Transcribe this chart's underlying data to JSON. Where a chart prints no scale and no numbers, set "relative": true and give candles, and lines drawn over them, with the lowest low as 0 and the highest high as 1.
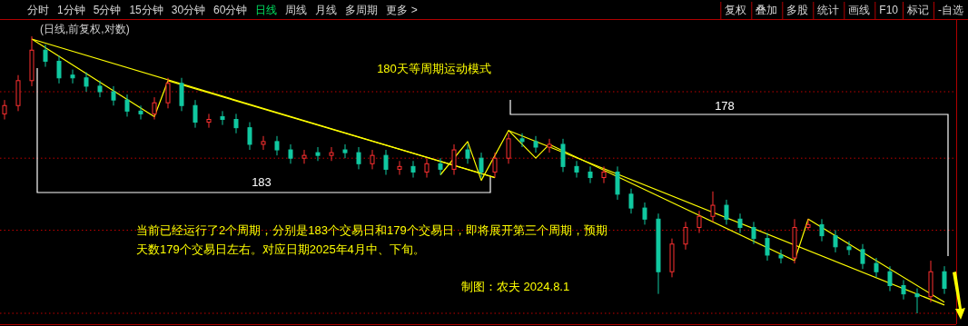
{
  "chart_data": {
    "type": "candlestick",
    "relative": true,
    "categories": [
      null,
      null,
      null,
      null,
      null,
      null,
      null,
      null,
      null,
      null,
      null,
      null,
      null,
      null,
      null,
      null,
      null,
      null,
      null,
      null,
      null,
      null,
      null,
      null,
      null,
      null,
      null,
      null,
      null,
      null,
      null,
      null,
      null,
      null,
      null,
      null,
      null,
      null,
      null,
      null,
      null,
      null,
      null,
      null,
      null,
      null,
      null,
      null,
      null,
      null,
      null,
      null,
      null,
      null,
      null,
      null,
      null,
      null,
      null,
      null,
      null,
      null,
      null,
      null,
      null,
      null,
      null,
      null,
      null,
      null
    ],
    "ohlc": [
      [
        0.72,
        0.77,
        0.7,
        0.75
      ],
      [
        0.75,
        0.86,
        0.73,
        0.84
      ],
      [
        0.84,
        1.0,
        0.82,
        0.95
      ],
      [
        0.95,
        0.97,
        0.89,
        0.91
      ],
      [
        0.91,
        0.93,
        0.83,
        0.85
      ],
      [
        0.86,
        0.88,
        0.83,
        0.85
      ],
      [
        0.85,
        0.87,
        0.8,
        0.82
      ],
      [
        0.82,
        0.84,
        0.78,
        0.8
      ],
      [
        0.8,
        0.82,
        0.75,
        0.77
      ],
      [
        0.77,
        0.79,
        0.71,
        0.73
      ],
      [
        0.73,
        0.75,
        0.7,
        0.72
      ],
      [
        0.72,
        0.78,
        0.7,
        0.76
      ],
      [
        0.76,
        0.85,
        0.74,
        0.83
      ],
      [
        0.83,
        0.85,
        0.73,
        0.75
      ],
      [
        0.75,
        0.77,
        0.67,
        0.69
      ],
      [
        0.69,
        0.72,
        0.67,
        0.7
      ],
      [
        0.71,
        0.73,
        0.68,
        0.7
      ],
      [
        0.7,
        0.72,
        0.65,
        0.67
      ],
      [
        0.67,
        0.69,
        0.59,
        0.61
      ],
      [
        0.61,
        0.64,
        0.59,
        0.62
      ],
      [
        0.62,
        0.64,
        0.57,
        0.59
      ],
      [
        0.59,
        0.61,
        0.54,
        0.56
      ],
      [
        0.56,
        0.59,
        0.54,
        0.57
      ],
      [
        0.58,
        0.6,
        0.55,
        0.57
      ],
      [
        0.57,
        0.6,
        0.55,
        0.58
      ],
      [
        0.59,
        0.61,
        0.56,
        0.58
      ],
      [
        0.58,
        0.6,
        0.52,
        0.54
      ],
      [
        0.54,
        0.59,
        0.52,
        0.57
      ],
      [
        0.57,
        0.59,
        0.5,
        0.52
      ],
      [
        0.52,
        0.55,
        0.5,
        0.53
      ],
      [
        0.53,
        0.55,
        0.49,
        0.51
      ],
      [
        0.51,
        0.56,
        0.49,
        0.54
      ],
      [
        0.54,
        0.56,
        0.5,
        0.52
      ],
      [
        0.52,
        0.61,
        0.5,
        0.59
      ],
      [
        0.59,
        0.61,
        0.54,
        0.56
      ],
      [
        0.56,
        0.58,
        0.49,
        0.51
      ],
      [
        0.51,
        0.58,
        0.49,
        0.56
      ],
      [
        0.56,
        0.65,
        0.54,
        0.63
      ],
      [
        0.63,
        0.65,
        0.6,
        0.62
      ],
      [
        0.62,
        0.64,
        0.58,
        0.6
      ],
      [
        0.6,
        0.63,
        0.58,
        0.61
      ],
      [
        0.61,
        0.63,
        0.51,
        0.53
      ],
      [
        0.53,
        0.55,
        0.49,
        0.51
      ],
      [
        0.51,
        0.53,
        0.47,
        0.49
      ],
      [
        0.49,
        0.53,
        0.47,
        0.51
      ],
      [
        0.51,
        0.53,
        0.41,
        0.43
      ],
      [
        0.43,
        0.45,
        0.36,
        0.38
      ],
      [
        0.38,
        0.4,
        0.32,
        0.34
      ],
      [
        0.34,
        0.36,
        0.07,
        0.15
      ],
      [
        0.15,
        0.27,
        0.13,
        0.25
      ],
      [
        0.25,
        0.33,
        0.23,
        0.31
      ],
      [
        0.31,
        0.37,
        0.29,
        0.35
      ],
      [
        0.35,
        0.44,
        0.33,
        0.39
      ],
      [
        0.39,
        0.41,
        0.32,
        0.34
      ],
      [
        0.34,
        0.36,
        0.29,
        0.31
      ],
      [
        0.31,
        0.33,
        0.25,
        0.27
      ],
      [
        0.27,
        0.29,
        0.19,
        0.21
      ],
      [
        0.21,
        0.23,
        0.18,
        0.2
      ],
      [
        0.2,
        0.34,
        0.18,
        0.31
      ],
      [
        0.31,
        0.34,
        0.3,
        0.32
      ],
      [
        0.32,
        0.34,
        0.26,
        0.28
      ],
      [
        0.28,
        0.3,
        0.22,
        0.24
      ],
      [
        0.24,
        0.26,
        0.21,
        0.23
      ],
      [
        0.23,
        0.25,
        0.16,
        0.18
      ],
      [
        0.18,
        0.2,
        0.13,
        0.15
      ],
      [
        0.15,
        0.17,
        0.08,
        0.1
      ],
      [
        0.1,
        0.12,
        0.05,
        0.07
      ],
      [
        0.07,
        0.09,
        0.0,
        0.06
      ],
      [
        0.06,
        0.19,
        0.04,
        0.15
      ],
      [
        0.15,
        0.17,
        0.07,
        0.09
      ]
    ],
    "series": [
      {
        "type": "line",
        "color": "#ffff00",
        "values": [
          null,
          null,
          0.99,
          null,
          null,
          null,
          null,
          null,
          null,
          null,
          null,
          0.71,
          0.84,
          null,
          null,
          null,
          null,
          null,
          null,
          null,
          null,
          null,
          null,
          null,
          null,
          null,
          null,
          null,
          null,
          null,
          null,
          null,
          null,
          null,
          null,
          null,
          null,
          null,
          null,
          null,
          null,
          null,
          null,
          null,
          null,
          null,
          null,
          null,
          null,
          null,
          null,
          null,
          null,
          null,
          null,
          null,
          null,
          null,
          null,
          null,
          null,
          null,
          null,
          null,
          null,
          null,
          null,
          null,
          null,
          null
        ]
      },
      {
        "type": "line",
        "color": "#ffff00",
        "values": [
          null,
          null,
          0.99,
          null,
          null,
          null,
          null,
          null,
          null,
          null,
          null,
          null,
          null,
          null,
          null,
          null,
          null,
          null,
          null,
          null,
          null,
          null,
          null,
          null,
          null,
          null,
          null,
          null,
          null,
          null,
          null,
          null,
          null,
          null,
          null,
          null,
          0.49,
          null,
          null,
          null,
          null,
          null,
          null,
          null,
          null,
          null,
          null,
          null,
          null,
          null,
          null,
          null,
          null,
          null,
          null,
          null,
          null,
          null,
          null,
          null,
          null,
          null,
          null,
          null,
          null,
          null,
          null,
          null,
          null,
          null
        ]
      },
      {
        "type": "line",
        "color": "#ffff00",
        "values": [
          null,
          null,
          null,
          null,
          null,
          null,
          null,
          null,
          null,
          null,
          null,
          null,
          0.84,
          null,
          null,
          null,
          null,
          null,
          null,
          null,
          null,
          null,
          null,
          null,
          null,
          null,
          null,
          null,
          null,
          null,
          null,
          null,
          null,
          null,
          null,
          null,
          0.49,
          null,
          null,
          null,
          null,
          null,
          null,
          null,
          null,
          null,
          null,
          null,
          null,
          null,
          null,
          null,
          null,
          null,
          null,
          null,
          null,
          null,
          null,
          null,
          null,
          null,
          null,
          null,
          null,
          null,
          null,
          null,
          null,
          null
        ]
      },
      {
        "type": "line",
        "color": "#ffff00",
        "values": [
          null,
          null,
          null,
          null,
          null,
          null,
          null,
          null,
          null,
          null,
          null,
          null,
          null,
          null,
          null,
          null,
          null,
          null,
          null,
          null,
          null,
          null,
          null,
          null,
          null,
          null,
          null,
          null,
          null,
          null,
          null,
          null,
          0.5,
          null,
          0.62,
          0.48,
          null,
          0.66,
          null,
          0.56,
          0.61,
          null,
          null,
          null,
          null,
          null,
          null,
          null,
          null,
          null,
          null,
          null,
          null,
          null,
          null,
          null,
          null,
          null,
          null,
          null,
          null,
          null,
          null,
          null,
          null,
          null,
          null,
          null,
          null,
          null
        ]
      },
      {
        "type": "line",
        "color": "#ffff00",
        "values": [
          null,
          null,
          null,
          null,
          null,
          null,
          null,
          null,
          null,
          null,
          null,
          null,
          null,
          null,
          null,
          null,
          null,
          null,
          null,
          null,
          null,
          null,
          null,
          null,
          null,
          null,
          null,
          null,
          null,
          null,
          null,
          null,
          null,
          null,
          null,
          null,
          null,
          0.66,
          null,
          null,
          null,
          null,
          null,
          null,
          null,
          null,
          null,
          null,
          null,
          null,
          null,
          null,
          null,
          null,
          null,
          null,
          null,
          null,
          null,
          null,
          null,
          null,
          null,
          null,
          null,
          null,
          null,
          null,
          null,
          0.03
        ]
      },
      {
        "type": "line",
        "color": "#ffff00",
        "values": [
          null,
          null,
          null,
          null,
          null,
          null,
          null,
          null,
          null,
          null,
          null,
          null,
          null,
          null,
          null,
          null,
          null,
          null,
          null,
          null,
          null,
          null,
          null,
          null,
          null,
          null,
          null,
          null,
          null,
          null,
          null,
          null,
          null,
          null,
          null,
          null,
          null,
          null,
          null,
          null,
          0.61,
          null,
          null,
          null,
          null,
          null,
          null,
          null,
          null,
          null,
          null,
          null,
          null,
          null,
          null,
          null,
          null,
          null,
          0.19,
          null,
          null,
          null,
          null,
          null,
          null,
          null,
          null,
          null,
          null,
          null
        ]
      },
      {
        "type": "line",
        "color": "#ffff00",
        "values": [
          null,
          null,
          null,
          null,
          null,
          null,
          null,
          null,
          null,
          null,
          null,
          null,
          null,
          null,
          null,
          null,
          null,
          null,
          null,
          null,
          null,
          null,
          null,
          null,
          null,
          null,
          null,
          null,
          null,
          null,
          null,
          null,
          null,
          null,
          null,
          null,
          null,
          null,
          null,
          null,
          null,
          null,
          null,
          null,
          null,
          null,
          null,
          null,
          null,
          null,
          null,
          null,
          null,
          null,
          null,
          null,
          null,
          null,
          0.19,
          0.34,
          null,
          null,
          null,
          null,
          null,
          null,
          null,
          null,
          null,
          0.04
        ]
      }
    ],
    "ref_lines": [
      {
        "axis": "y",
        "value": 0.8,
        "color": "#c00000",
        "line_style": "dotted"
      },
      {
        "axis": "y",
        "value": 0.56,
        "color": "#c00000",
        "line_style": "dotted"
      },
      {
        "axis": "y",
        "value": 0.3,
        "color": "#c00000",
        "line_style": "dotted"
      },
      {
        "axis": "y",
        "value": 0.0,
        "color": "#c00000",
        "line_style": "dotted"
      }
    ],
    "title": "180天等周期运动模式",
    "subtitle": "(日线,前复权,对数)",
    "annotations": [
      "183",
      "178",
      "当前已经运行了2个周期，分别是183个交易日和179个交易日，即将展开第三个周期，预期天数179个交易日左右。对应日期2025年4月中、下旬。",
      "制图：农夫 2024.8.1",
      "分时",
      "1分钟",
      "5分钟",
      "15分钟",
      "30分钟",
      "60分钟",
      "日线",
      "周线",
      "月线",
      "多周期",
      "更多 >",
      "复权",
      "叠加",
      "多股",
      "统计",
      "画线",
      "F10",
      "标记",
      "-自选"
    ]
  }
}
